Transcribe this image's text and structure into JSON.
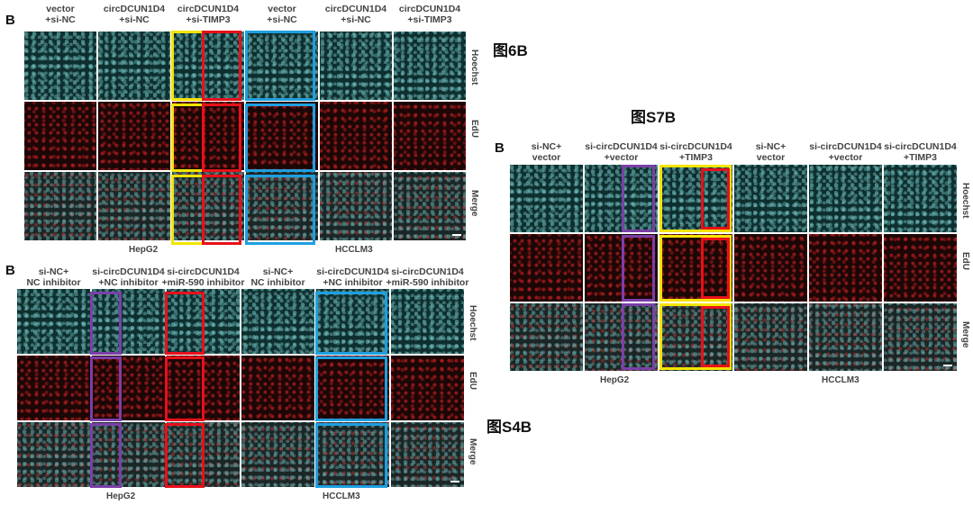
{
  "fig_labels": {
    "fig6b": "图6B",
    "figs7b": "图S7B",
    "figs4b": "图S4B"
  },
  "colors": {
    "yellow": "#f5e400",
    "red": "#e8101a",
    "blue": "#1e9fe0",
    "purple": "#7b3fa8"
  },
  "panel6b": {
    "letter": "B",
    "columns": [
      "vector\n+si-NC",
      "circDCUN1D4\n+si-NC",
      "circDCUN1D4\n+si-TIMP3",
      "vector\n+si-NC",
      "circDCUN1D4\n+si-NC",
      "circDCUN1D4\n+si-TIMP3"
    ],
    "rows": [
      "Hoechst",
      "EdU",
      "Merge"
    ],
    "cell_lines": [
      "HepG2",
      "HCCLM3"
    ]
  },
  "panelS4b": {
    "letter": "B",
    "columns": [
      "si-NC+\nNC inhibitor",
      "si-circDCUN1D4\n+NC inhibitor",
      "si-circDCUN1D4\n+miR-590 inhibitor",
      "si-NC+\nNC inhibitor",
      "si-circDCUN1D4\n+NC inhibitor",
      "si-circDCUN1D4\n+miR-590 inhibitor"
    ],
    "rows": [
      "Hoechst",
      "EdU",
      "Merge"
    ],
    "cell_lines": [
      "HepG2",
      "HCCLM3"
    ]
  },
  "panelS7b": {
    "letter": "B",
    "columns": [
      "si-NC+\nvector",
      "si-circDCUN1D4\n+vector",
      "si-circDCUN1D4\n+TIMP3",
      "si-NC+\nvector",
      "si-circDCUN1D4\n+vector",
      "si-circDCUN1D4\n+TIMP3"
    ],
    "rows": [
      "Hoechst",
      "EdU",
      "Merge"
    ],
    "cell_lines": [
      "HepG2",
      "HCCLM3"
    ]
  }
}
